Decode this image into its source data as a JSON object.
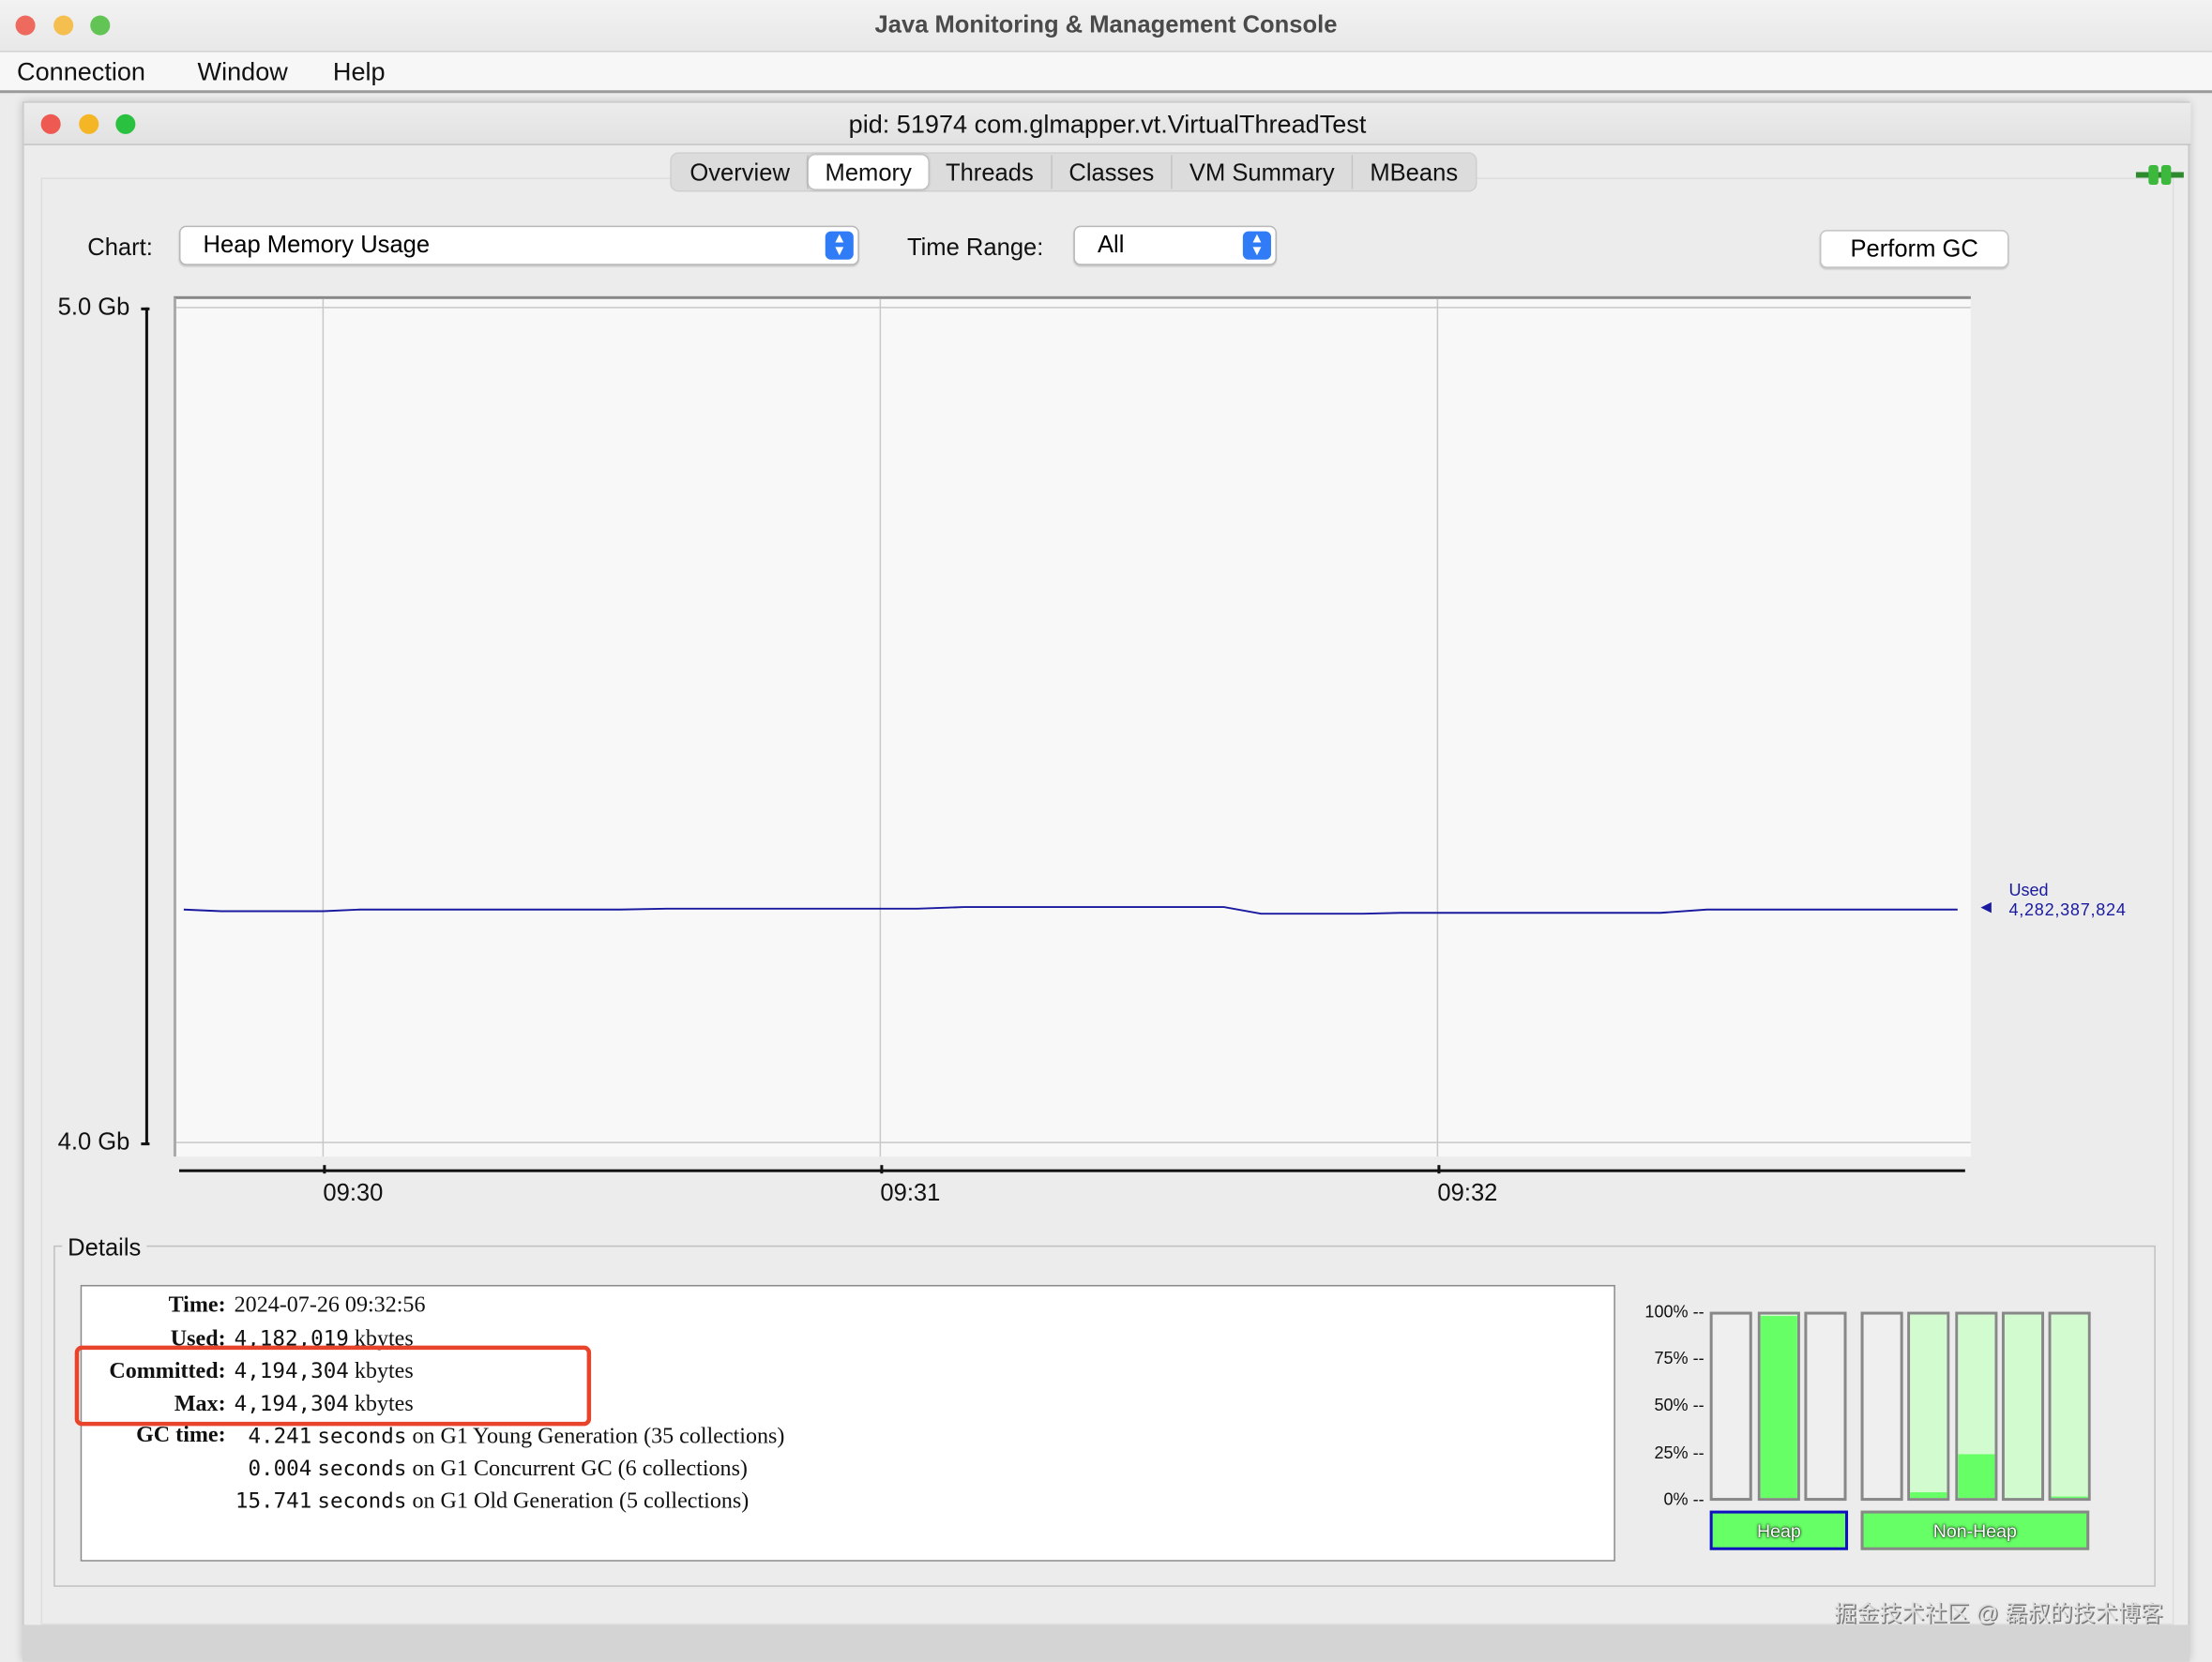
{
  "window": {
    "title": "Java Monitoring & Management Console"
  },
  "menu": [
    "Connection",
    "Window",
    "Help"
  ],
  "inner_window": {
    "title": "pid: 51974 com.glmapper.vt.VirtualThreadTest"
  },
  "tabs": [
    {
      "label": "Overview"
    },
    {
      "label": "Memory",
      "selected": true
    },
    {
      "label": "Threads"
    },
    {
      "label": "Classes"
    },
    {
      "label": "VM Summary"
    },
    {
      "label": "MBeans"
    }
  ],
  "controls": {
    "chart_label": "Chart:",
    "chart_value": "Heap Memory Usage",
    "time_range_label": "Time Range:",
    "time_range_value": "All",
    "perform_gc": "Perform GC"
  },
  "colors": {
    "line": "#1a1aa0",
    "used_fill": "#66ff66",
    "committed_fill": "#d2fcd0",
    "highlight": "#e8442b",
    "selected_border": "#1010c0"
  },
  "chart_data": {
    "type": "line",
    "ylim": [
      4.0,
      5.0
    ],
    "yticks": [
      "4.0 Gb",
      "5.0 Gb"
    ],
    "xticks": [
      "09:30",
      "09:31",
      "09:32"
    ],
    "grid": true,
    "series": [
      {
        "name": "Used",
        "points": [
          [
            "09:29:45",
            4.279
          ],
          [
            "09:29:49",
            4.277
          ],
          [
            "09:30:00",
            4.277
          ],
          [
            "09:30:04",
            4.279
          ],
          [
            "09:30:32",
            4.279
          ],
          [
            "09:30:37",
            4.28
          ],
          [
            "09:31:04",
            4.28
          ],
          [
            "09:31:09",
            4.282
          ],
          [
            "09:31:37",
            4.282
          ],
          [
            "09:31:41",
            4.274
          ],
          [
            "09:31:52",
            4.274
          ],
          [
            "09:31:56",
            4.275
          ],
          [
            "09:32:24",
            4.275
          ],
          [
            "09:32:29",
            4.279
          ],
          [
            "09:32:56",
            4.279
          ]
        ]
      }
    ],
    "current_label": "Used",
    "current_value": "4,282,387,824"
  },
  "details": {
    "legend": "Details",
    "time_label": "Time:",
    "time": "2024-07-26 09:32:56",
    "used_label": "Used:",
    "used": "4,182,019",
    "used_unit": "kbytes",
    "committed_label": "Committed:",
    "committed": "4,194,304",
    "committed_unit": "kbytes",
    "max_label": "Max:",
    "max": "4,194,304",
    "max_unit": "kbytes",
    "gc_label": "GC time:",
    "gc": [
      {
        "secs": "4.241",
        "unit": "seconds",
        "desc": "on G1 Young Generation (35 collections)"
      },
      {
        "secs": "0.004",
        "unit": "seconds",
        "desc": "on G1 Concurrent GC (6 collections)"
      },
      {
        "secs": "15.741",
        "unit": "seconds",
        "desc": "on G1 Old Generation (5 collections)"
      }
    ]
  },
  "pools": {
    "ticks": [
      "100% --",
      "75% --",
      "50% --",
      "25% --",
      "0% --"
    ],
    "heap_label": "Heap",
    "nonheap_label": "Non-Heap",
    "heap": [
      {
        "used": 0,
        "committed": 0
      },
      {
        "used": 99,
        "committed": 100
      },
      {
        "used": 0,
        "committed": 0
      }
    ],
    "nonheap": [
      {
        "used": 0,
        "committed": 0
      },
      {
        "used": 3,
        "committed": 100
      },
      {
        "used": 24,
        "committed": 100
      },
      {
        "used": 0,
        "committed": 100
      },
      {
        "used": 1,
        "committed": 100
      }
    ]
  },
  "watermark": "掘金技术社区 @ 磊叔的技术博客"
}
